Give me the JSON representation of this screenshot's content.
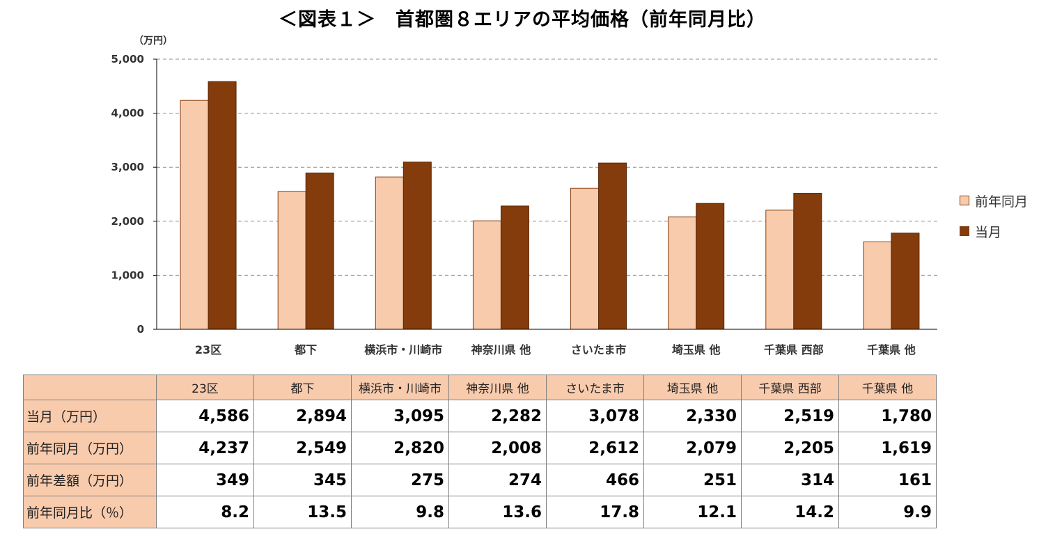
{
  "chart_data": {
    "type": "bar",
    "title": "＜図表１＞　首都圏８エリアの平均価格（前年同月比）",
    "ylabel": "（万円）",
    "ylim": [
      0,
      5000
    ],
    "yticks": [
      "0",
      "1,000",
      "2,000",
      "3,000",
      "4,000",
      "5,000"
    ],
    "ytick_values": [
      0,
      1000,
      2000,
      3000,
      4000,
      5000
    ],
    "grid": true,
    "legend_position": "right",
    "categories": [
      "23区",
      "都下",
      "横浜市・川崎市",
      "神奈川県 他",
      "さいたま市",
      "埼玉県 他",
      "千葉県 西部",
      "千葉県 他"
    ],
    "series": [
      {
        "name": "前年同月",
        "color": "#f8cbad",
        "values": [
          4237,
          2549,
          2820,
          2008,
          2612,
          2079,
          2205,
          1619
        ]
      },
      {
        "name": "当月",
        "color": "#843c0c",
        "values": [
          4586,
          2894,
          3095,
          2282,
          3078,
          2330,
          2519,
          1780
        ]
      }
    ]
  },
  "table": {
    "header": [
      "",
      "23区",
      "都下",
      "横浜市・川崎市",
      "神奈川県 他",
      "さいたま市",
      "埼玉県 他",
      "千葉県 西部",
      "千葉県 他"
    ],
    "rows": [
      {
        "label": "当月（万円）",
        "values": [
          "4,586",
          "2,894",
          "3,095",
          "2,282",
          "3,078",
          "2,330",
          "2,519",
          "1,780"
        ]
      },
      {
        "label": "前年同月（万円）",
        "values": [
          "4,237",
          "2,549",
          "2,820",
          "2,008",
          "2,612",
          "2,079",
          "2,205",
          "1,619"
        ]
      },
      {
        "label": "前年差額（万円）",
        "values": [
          "349",
          "345",
          "275",
          "274",
          "466",
          "251",
          "314",
          "161"
        ]
      },
      {
        "label": "前年同月比（％）",
        "values": [
          "8.2",
          "13.5",
          "9.8",
          "13.6",
          "17.8",
          "12.1",
          "14.2",
          "9.9"
        ]
      }
    ]
  }
}
